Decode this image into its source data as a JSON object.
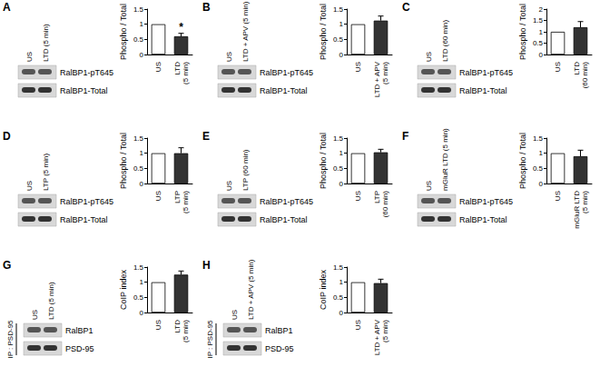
{
  "chart_data": [
    {
      "title": "A",
      "type": "bar",
      "ylabel": "Phospho / Total",
      "categories": [
        "US",
        "LTD (5 min)"
      ],
      "values": [
        1,
        0.6
      ],
      "errors": [
        null,
        0.1
      ],
      "significance": [
        null,
        "*"
      ],
      "ylim": [
        0,
        1.5
      ],
      "yticks": [
        0,
        0.5,
        1,
        1.5
      ],
      "colors": [
        "#ffffff",
        "#333333"
      ],
      "blot": {
        "lanes": [
          "US",
          "LTD (5 min)"
        ],
        "rows": [
          "RalBP1-pT645",
          "RalBP1-Total"
        ]
      }
    },
    {
      "title": "B",
      "type": "bar",
      "ylabel": "Phospho / Total",
      "categories": [
        "US",
        "LTD + APV (5 min)"
      ],
      "values": [
        1,
        1.12
      ],
      "errors": [
        null,
        0.15
      ],
      "ylim": [
        0,
        1.5
      ],
      "yticks": [
        0,
        0.5,
        1,
        1.5
      ],
      "colors": [
        "#ffffff",
        "#333333"
      ],
      "blot": {
        "lanes": [
          "US",
          "LTD + APV (5 min)"
        ],
        "rows": [
          "RalBP1-pT645",
          "RalBP1-Total"
        ]
      }
    },
    {
      "title": "C",
      "type": "bar",
      "ylabel": "Phospho / Total",
      "categories": [
        "US",
        "LTD (60 min)"
      ],
      "values": [
        1,
        1.2
      ],
      "errors": [
        null,
        0.25
      ],
      "ylim": [
        0,
        2
      ],
      "yticks": [
        0,
        0.5,
        1,
        1.5,
        2
      ],
      "colors": [
        "#ffffff",
        "#333333"
      ],
      "blot": {
        "lanes": [
          "US",
          "LTD (60 min)"
        ],
        "rows": [
          "RalBP1-pT645",
          "RalBP1-Total"
        ]
      }
    },
    {
      "title": "D",
      "type": "bar",
      "ylabel": "Phospho / Total",
      "categories": [
        "US",
        "LTP (5 min)"
      ],
      "values": [
        1,
        1.0
      ],
      "errors": [
        null,
        0.18
      ],
      "ylim": [
        0,
        1.5
      ],
      "yticks": [
        0,
        0.5,
        1,
        1.5
      ],
      "colors": [
        "#ffffff",
        "#333333"
      ],
      "blot": {
        "lanes": [
          "US",
          "LTP (5 min)"
        ],
        "rows": [
          "RalBP1-pT645",
          "RalBP1-Total"
        ]
      }
    },
    {
      "title": "E",
      "type": "bar",
      "ylabel": "Phospho / Total",
      "categories": [
        "US",
        "LTP (60 min)"
      ],
      "values": [
        1,
        1.03
      ],
      "errors": [
        null,
        0.1
      ],
      "ylim": [
        0,
        1.5
      ],
      "yticks": [
        0,
        0.5,
        1,
        1.5
      ],
      "colors": [
        "#ffffff",
        "#333333"
      ],
      "blot": {
        "lanes": [
          "US",
          "LTP (60 min)"
        ],
        "rows": [
          "RalBP1-pT645",
          "RalBP1-Total"
        ]
      }
    },
    {
      "title": "F",
      "type": "bar",
      "ylabel": "Phospho / Total",
      "categories": [
        "US",
        "mGluR LTD (5 min)"
      ],
      "values": [
        1,
        0.9
      ],
      "errors": [
        null,
        0.2
      ],
      "ylim": [
        0,
        1.5
      ],
      "yticks": [
        0,
        0.5,
        1,
        1.5
      ],
      "colors": [
        "#ffffff",
        "#333333"
      ],
      "blot": {
        "lanes": [
          "US",
          "mGluR LTD (5 min)"
        ],
        "rows": [
          "RalBP1-pT645",
          "RalBP1-Total"
        ]
      }
    },
    {
      "title": "G",
      "type": "bar",
      "ylabel": "CoIP index",
      "categories": [
        "US",
        "LTD (5 min)"
      ],
      "values": [
        1,
        1.25
      ],
      "errors": [
        null,
        0.12
      ],
      "ylim": [
        0,
        1.5
      ],
      "yticks": [
        0,
        0.5,
        1,
        1.5
      ],
      "colors": [
        "#ffffff",
        "#333333"
      ],
      "blot": {
        "lanes": [
          "US",
          "LTD (5 min)"
        ],
        "rows": [
          "RalBP1",
          "PSD-95"
        ],
        "side_label": "IP : PSD-95"
      }
    },
    {
      "title": "H",
      "type": "bar",
      "ylabel": "CoIP index",
      "categories": [
        "US",
        "LTD + APV (5 min)"
      ],
      "values": [
        1,
        0.97
      ],
      "errors": [
        null,
        0.13
      ],
      "ylim": [
        0,
        1.5
      ],
      "yticks": [
        0,
        0.5,
        1,
        1.5
      ],
      "colors": [
        "#ffffff",
        "#333333"
      ],
      "blot": {
        "lanes": [
          "US",
          "LTD + APV (5 min)"
        ],
        "rows": [
          "RalBP1",
          "PSD-95"
        ],
        "side_label": "IP : PSD-95"
      }
    }
  ]
}
